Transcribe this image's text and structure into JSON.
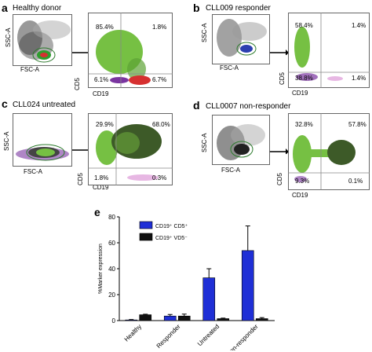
{
  "panels": [
    {
      "letter": "a",
      "title": "Healthy donor",
      "ssc": "SSC-A",
      "fsc": "FSC-A",
      "cd5": "CD5",
      "cd19": "CD19",
      "quadrants": {
        "ul": "85.4%",
        "ur": "1.8%",
        "ll": "6.1%",
        "lr": "6.7%"
      }
    },
    {
      "letter": "b",
      "title": "CLL009 responder",
      "ssc": "SSC-A",
      "fsc": "FSC-A",
      "cd5": "CD5",
      "cd19": "CD19",
      "quadrants": {
        "ul": "58.4%",
        "ur": "1.4%",
        "ll": "38.8%",
        "lr": "1.4%"
      }
    },
    {
      "letter": "c",
      "title": "CLL024 untreated",
      "ssc": "SSC-A",
      "fsc": "FSC-A",
      "cd5": "CD5",
      "cd19": "CD19",
      "quadrants": {
        "ul": "29.9%",
        "ur": "68.0%",
        "ll": "1.8%",
        "lr": "0.3%"
      }
    },
    {
      "letter": "d",
      "title": "CLL0007 non-responder",
      "ssc": "SSC-A",
      "fsc": "FSC-A",
      "cd5": "CD5",
      "cd19": "CD19",
      "quadrants": {
        "ul": "32.8%",
        "ur": "57.8%",
        "ll": "9.3%",
        "lr": "0.1%"
      }
    }
  ],
  "chart_panel_letter": "e",
  "chart_data": {
    "type": "bar",
    "categories": [
      "Healthy",
      "Responder",
      "Untreated",
      "Non-responder"
    ],
    "series": [
      {
        "name": "CD19⁺ CD5⁺",
        "color": "#1f2fd6",
        "values": [
          0.5,
          3.5,
          33,
          54
        ],
        "errors": [
          0.3,
          1.2,
          7,
          19
        ]
      },
      {
        "name": "CD19⁺ VD5⁻",
        "color": "#111111",
        "values": [
          4.5,
          3.5,
          1.5,
          1.5
        ],
        "errors": [
          0.4,
          1.5,
          0.4,
          0.8
        ]
      }
    ],
    "ylabel": "%Marker expression",
    "ylim": [
      0,
      80
    ],
    "yticks": [
      0,
      20,
      40,
      60,
      80
    ],
    "legend": "top-left"
  }
}
